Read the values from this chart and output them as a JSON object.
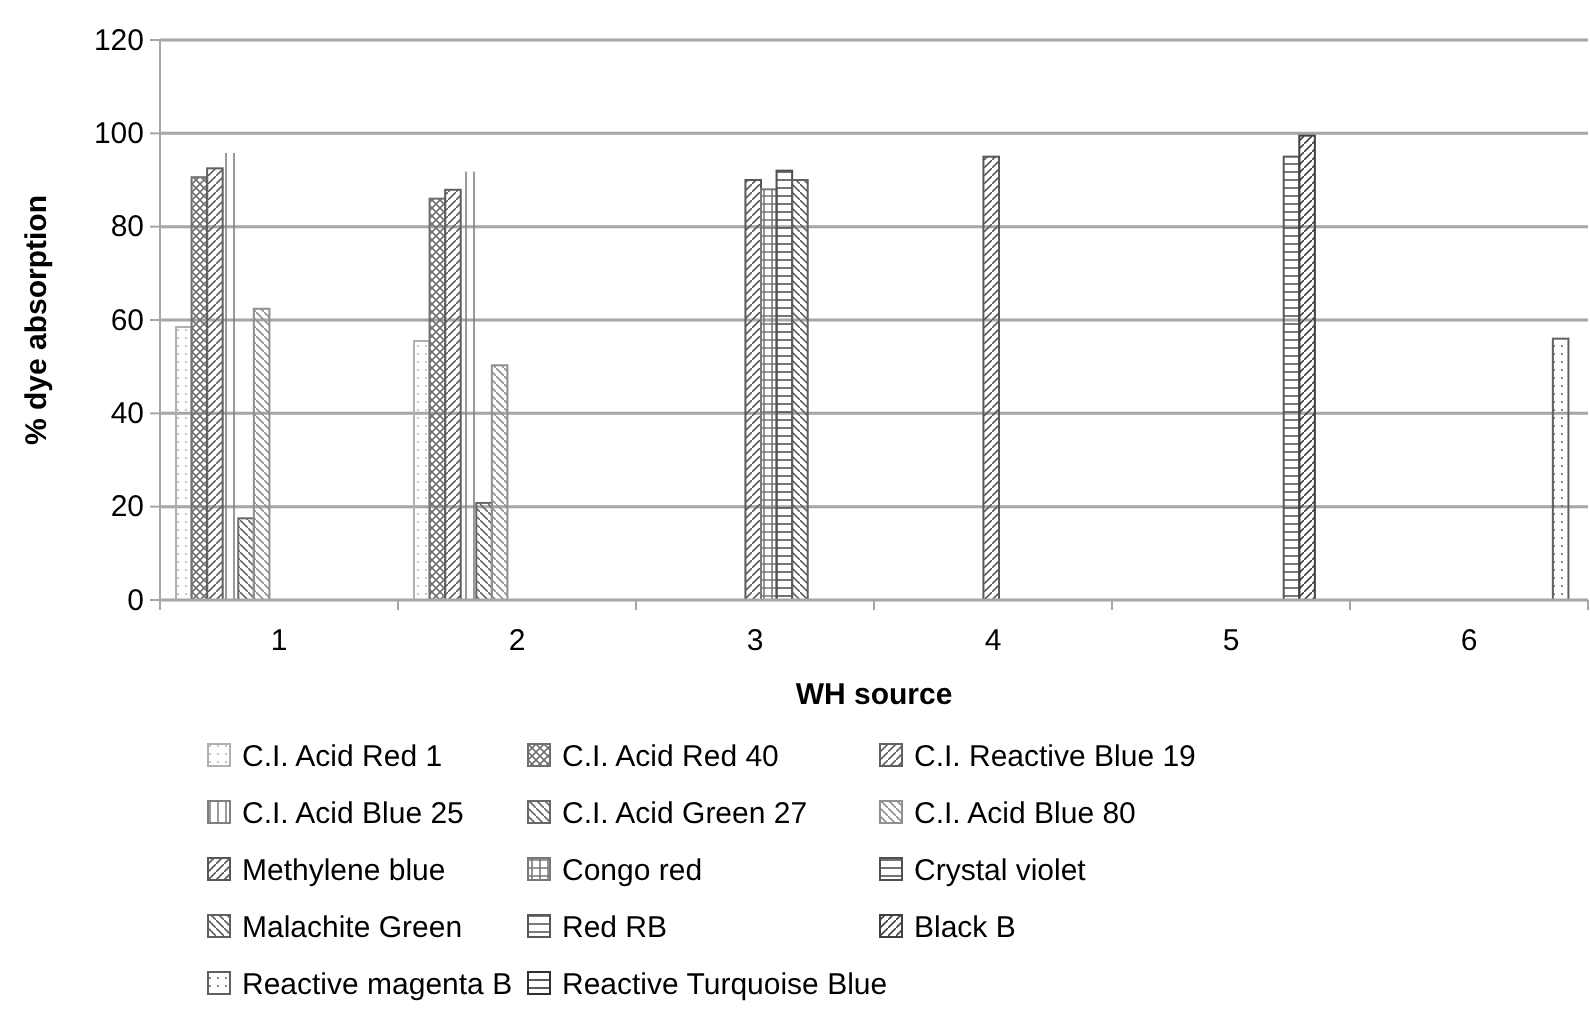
{
  "chart_data": {
    "type": "bar",
    "xlabel": "WH source",
    "ylabel": "% dye absorption",
    "categories": [
      "1",
      "2",
      "3",
      "4",
      "5",
      "6"
    ],
    "ylim": [
      0,
      120
    ],
    "yticks": [
      0,
      20,
      40,
      60,
      80,
      100,
      120
    ],
    "grid": "y",
    "legend": "bottom",
    "series": [
      {
        "name": "C.I. Acid Red 1",
        "color": "#b0b0b0",
        "values": [
          58.5,
          55.5,
          null,
          null,
          null,
          null
        ]
      },
      {
        "name": "C.I. Acid Red 40",
        "color": "#707070",
        "values": [
          90.6,
          86,
          null,
          null,
          null,
          null
        ]
      },
      {
        "name": "C.I. Reactive Blue 19",
        "color": "#606060",
        "values": [
          92.5,
          87.9,
          null,
          null,
          null,
          null
        ]
      },
      {
        "name": "C.I. Acid Blue 25",
        "color": "#808080",
        "values": [
          95.8,
          91.8,
          null,
          null,
          null,
          null
        ]
      },
      {
        "name": "C.I. Acid Green 27",
        "color": "#686868",
        "values": [
          17.5,
          20.8,
          null,
          null,
          null,
          null
        ]
      },
      {
        "name": "C.I. Acid Blue 80",
        "color": "#909090",
        "values": [
          62.4,
          50.3,
          null,
          null,
          null,
          null
        ]
      },
      {
        "name": "Methylene blue",
        "color": "#585858",
        "values": [
          null,
          null,
          90,
          95,
          null,
          null
        ]
      },
      {
        "name": "Congo red",
        "color": "#787878",
        "values": [
          null,
          null,
          88,
          null,
          null,
          null
        ]
      },
      {
        "name": "Crystal violet",
        "color": "#505050",
        "values": [
          null,
          null,
          92,
          null,
          null,
          null
        ]
      },
      {
        "name": "Malachite Green",
        "color": "#606060",
        "values": [
          null,
          null,
          90,
          null,
          null,
          null
        ]
      },
      {
        "name": "Red RB",
        "color": "#585858",
        "values": [
          null,
          null,
          null,
          null,
          95,
          null
        ]
      },
      {
        "name": "Black B",
        "color": "#404040",
        "values": [
          null,
          null,
          null,
          null,
          99.5,
          null
        ]
      },
      {
        "name": "Reactive magenta B",
        "color": "#606060",
        "values": [
          null,
          null,
          null,
          null,
          null,
          56
        ]
      },
      {
        "name": "Reactive Turquoise Blue",
        "color": "#303030",
        "values": [
          null,
          null,
          null,
          null,
          null,
          null
        ]
      }
    ]
  }
}
